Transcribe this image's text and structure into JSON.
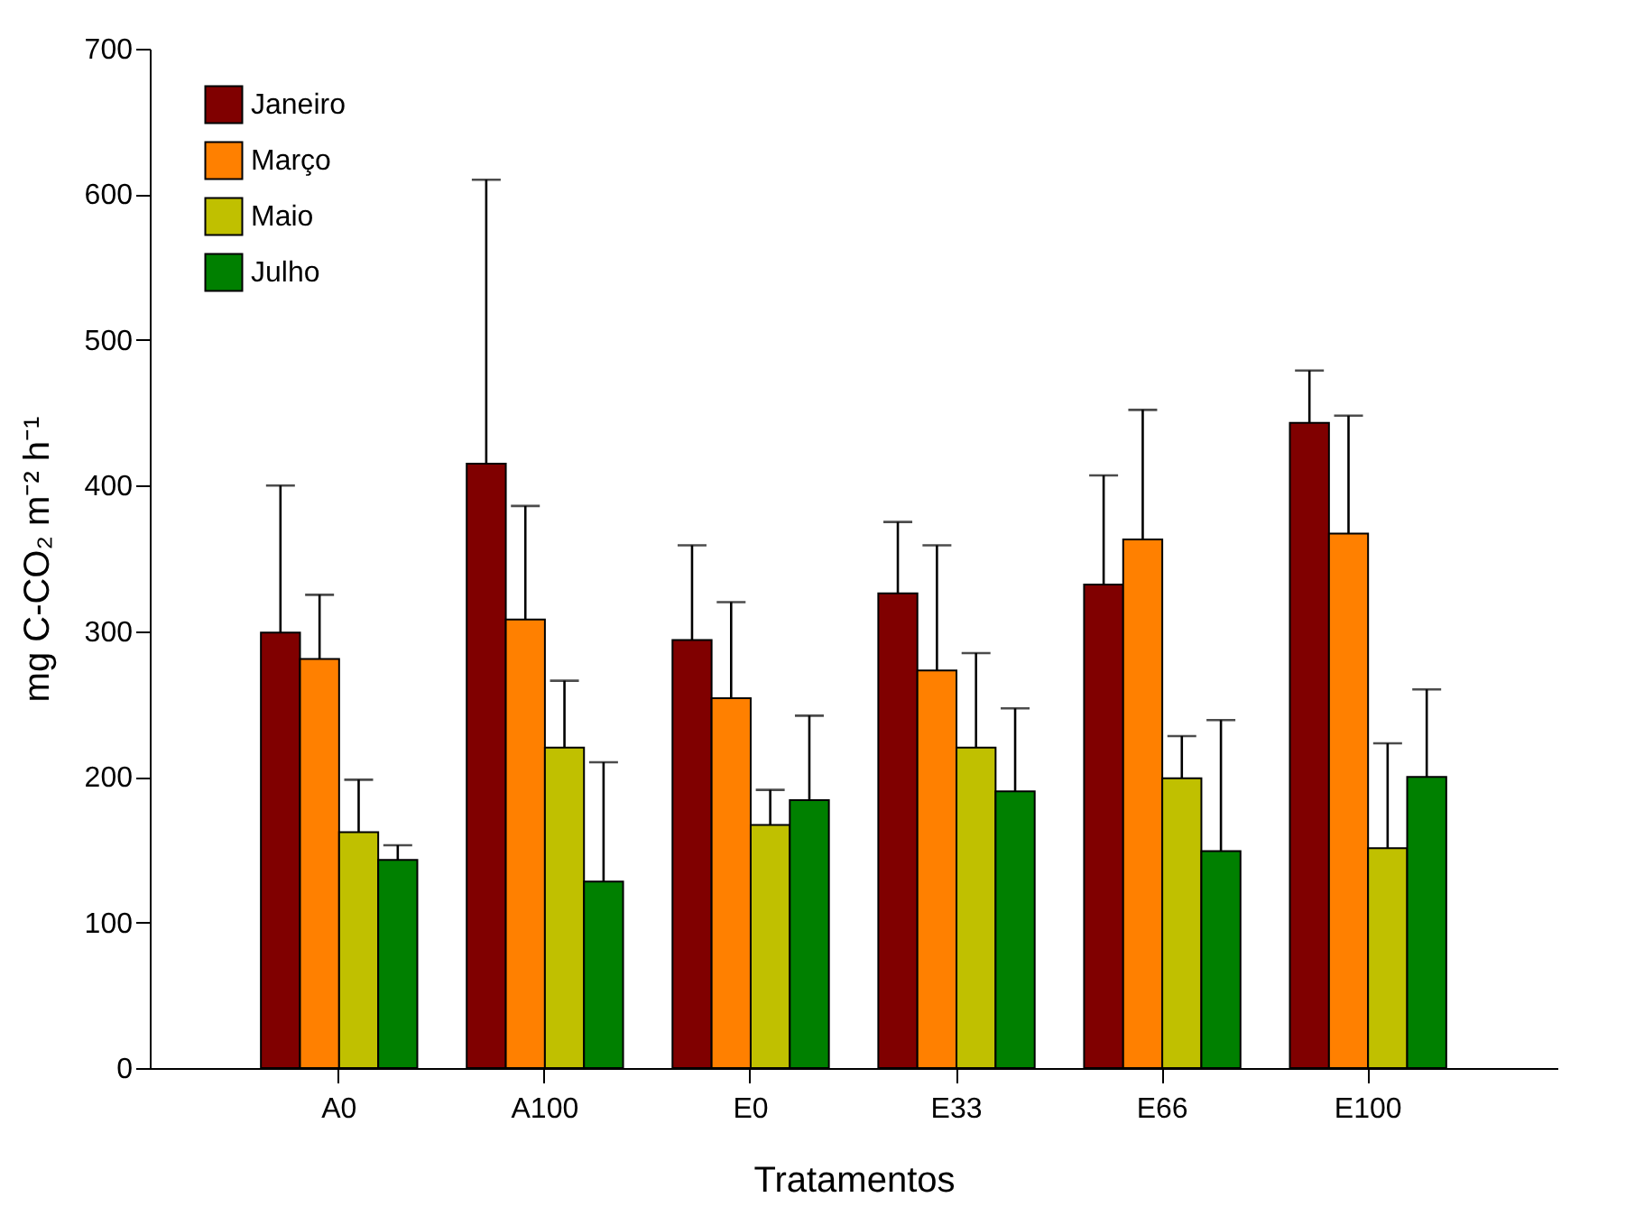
{
  "chart_data": {
    "type": "bar",
    "xlabel": "Tratamentos",
    "ylabel": "mg C-CO₂ m⁻² h⁻¹",
    "categories": [
      "A0",
      "A100",
      "E0",
      "E33",
      "E66",
      "E100"
    ],
    "ylim": [
      0,
      700
    ],
    "yticks": [
      0,
      100,
      200,
      300,
      400,
      500,
      600,
      700
    ],
    "grid": false,
    "legend": "top left",
    "series": [
      {
        "name": "Janeiro",
        "color": "#800000",
        "values": [
          299,
          415,
          294,
          326,
          332,
          443
        ],
        "errors": [
          101,
          195,
          65,
          49,
          75,
          36
        ]
      },
      {
        "name": "Março",
        "color": "#ff8000",
        "values": [
          281,
          308,
          254,
          273,
          363,
          367
        ],
        "errors": [
          44,
          78,
          66,
          86,
          89,
          81
        ]
      },
      {
        "name": "Maio",
        "color": "#c0c000",
        "values": [
          162,
          220,
          167,
          220,
          199,
          151
        ],
        "errors": [
          36,
          46,
          24,
          65,
          29,
          72
        ]
      },
      {
        "name": "Julho",
        "color": "#008000",
        "values": [
          143,
          128,
          184,
          190,
          149,
          200
        ],
        "errors": [
          10,
          82,
          58,
          57,
          90,
          60
        ]
      }
    ]
  }
}
